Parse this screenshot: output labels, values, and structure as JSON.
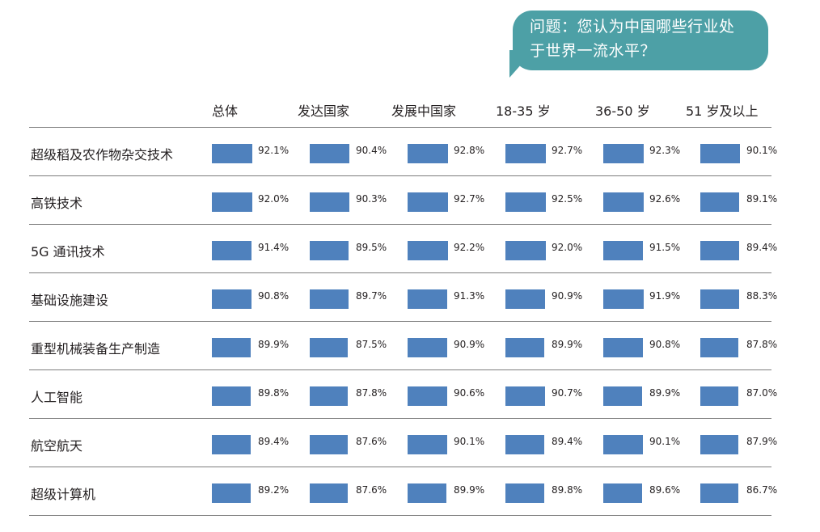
{
  "question": {
    "line1": "问题：您认为中国哪些行业处",
    "line2": "于世界一流水平？"
  },
  "chart_data": {
    "type": "bar",
    "columns": [
      "总体",
      "发达国家",
      "发展中国家",
      "18-35 岁",
      "36-50 岁",
      "51 岁及以上"
    ],
    "rows": [
      {
        "label": "超级稻及农作物杂交技术",
        "values": [
          92.1,
          90.4,
          92.8,
          92.7,
          92.3,
          90.1
        ],
        "display": [
          "92.1%",
          "90.4%",
          "92.8%",
          "92.7%",
          "92.3%",
          "90.1%"
        ]
      },
      {
        "label": "高铁技术",
        "values": [
          92.0,
          90.3,
          92.7,
          92.5,
          92.6,
          89.1
        ],
        "display": [
          "92.0%",
          "90.3%",
          "92.7%",
          "92.5%",
          "92.6%",
          "89.1%"
        ]
      },
      {
        "label": "5G 通讯技术",
        "values": [
          91.4,
          89.5,
          92.2,
          92.0,
          91.5,
          89.4
        ],
        "display": [
          "91.4%",
          "89.5%",
          "92.2%",
          "92.0%",
          "91.5%",
          "89.4%"
        ]
      },
      {
        "label": "基础设施建设",
        "values": [
          90.8,
          89.7,
          91.3,
          90.9,
          91.9,
          88.3
        ],
        "display": [
          "90.8%",
          "89.7%",
          "91.3%",
          "90.9%",
          "91.9%",
          "88.3%"
        ]
      },
      {
        "label": "重型机械装备生产制造",
        "values": [
          89.9,
          87.5,
          90.9,
          89.9,
          90.8,
          87.8
        ],
        "display": [
          "89.9%",
          "87.5%",
          "90.9%",
          "89.9%",
          "90.8%",
          "87.8%"
        ]
      },
      {
        "label": "人工智能",
        "values": [
          89.8,
          87.8,
          90.6,
          90.7,
          89.9,
          87.0
        ],
        "display": [
          "89.8%",
          "87.8%",
          "90.6%",
          "90.7%",
          "89.9%",
          "87.0%"
        ]
      },
      {
        "label": "航空航天",
        "values": [
          89.4,
          87.6,
          90.1,
          89.4,
          90.1,
          87.9
        ],
        "display": [
          "89.4%",
          "87.6%",
          "90.1%",
          "89.4%",
          "90.1%",
          "87.9%"
        ]
      },
      {
        "label": "超级计算机",
        "values": [
          89.2,
          87.6,
          89.9,
          89.8,
          89.6,
          86.7
        ],
        "display": [
          "89.2%",
          "87.6%",
          "89.9%",
          "89.8%",
          "89.6%",
          "86.7%"
        ]
      }
    ],
    "bar_color": "#4f81bd",
    "ylim": [
      0,
      100
    ]
  },
  "colors": {
    "bubble": "#4da0a6",
    "rule": "#7d7d7d",
    "text": "#231f20"
  }
}
